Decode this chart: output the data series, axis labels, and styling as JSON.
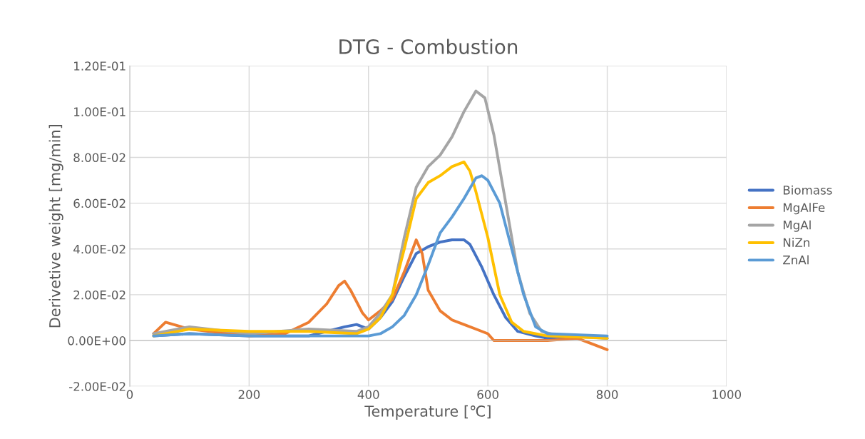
{
  "chart_data": {
    "type": "line",
    "title": "DTG - Combustion",
    "xlabel": "Temperature [℃]",
    "ylabel": "Derivetive weight [mg/min]",
    "xlim": [
      0,
      1000
    ],
    "xticks": [
      0,
      200,
      400,
      600,
      800,
      1000
    ],
    "ylim": [
      -0.02,
      0.12
    ],
    "yticks": [
      {
        "value": -0.02,
        "label": "-2.00E-02"
      },
      {
        "value": 0,
        "label": "0.00E+00"
      },
      {
        "value": 0.02,
        "label": "2.00E-02"
      },
      {
        "value": 0.04,
        "label": "4.00E-02"
      },
      {
        "value": 0.06,
        "label": "6.00E-02"
      },
      {
        "value": 0.08,
        "label": "8.00E-02"
      },
      {
        "value": 0.1,
        "label": "1.00E-01"
      },
      {
        "value": 0.12,
        "label": "1.20E-01"
      }
    ],
    "grid": true,
    "legend": "right",
    "marker": "none",
    "line_style": "solid",
    "series": [
      {
        "name": "Biomass",
        "color": "#4472c4",
        "x": [
          40,
          100,
          200,
          300,
          360,
          380,
          400,
          420,
          440,
          460,
          480,
          500,
          520,
          540,
          560,
          570,
          590,
          610,
          630,
          650,
          680,
          700,
          750,
          800
        ],
        "values": [
          0.002,
          0.003,
          0.002,
          0.002,
          0.006,
          0.007,
          0.005,
          0.01,
          0.017,
          0.028,
          0.038,
          0.041,
          0.043,
          0.044,
          0.044,
          0.042,
          0.032,
          0.02,
          0.01,
          0.004,
          0.002,
          0.001,
          0.002,
          0.001
        ]
      },
      {
        "name": "MgAlFe",
        "color": "#ed7d31",
        "x": [
          40,
          60,
          100,
          200,
          260,
          300,
          330,
          350,
          360,
          370,
          390,
          400,
          420,
          440,
          460,
          480,
          490,
          500,
          520,
          540,
          560,
          580,
          600,
          610,
          650,
          700,
          750,
          800
        ],
        "values": [
          0.003,
          0.008,
          0.005,
          0.002,
          0.003,
          0.008,
          0.016,
          0.024,
          0.026,
          0.022,
          0.012,
          0.009,
          0.013,
          0.018,
          0.03,
          0.044,
          0.038,
          0.022,
          0.013,
          0.009,
          0.007,
          0.005,
          0.003,
          0.0,
          0.0,
          0.0,
          0.001,
          -0.004
        ]
      },
      {
        "name": "MgAl",
        "color": "#a5a5a5",
        "x": [
          40,
          100,
          200,
          300,
          380,
          400,
          420,
          440,
          460,
          480,
          500,
          520,
          540,
          560,
          580,
          595,
          610,
          630,
          650,
          670,
          690,
          720,
          800
        ],
        "values": [
          0.003,
          0.006,
          0.003,
          0.005,
          0.004,
          0.006,
          0.012,
          0.02,
          0.045,
          0.067,
          0.076,
          0.081,
          0.089,
          0.1,
          0.109,
          0.106,
          0.09,
          0.06,
          0.03,
          0.012,
          0.004,
          0.002,
          0.001
        ]
      },
      {
        "name": "NiZn",
        "color": "#ffc000",
        "x": [
          40,
          100,
          200,
          300,
          380,
          400,
          420,
          440,
          460,
          480,
          500,
          520,
          540,
          560,
          570,
          580,
          600,
          620,
          640,
          660,
          700,
          800
        ],
        "values": [
          0.002,
          0.005,
          0.004,
          0.004,
          0.003,
          0.005,
          0.01,
          0.02,
          0.04,
          0.062,
          0.069,
          0.072,
          0.076,
          0.078,
          0.074,
          0.065,
          0.045,
          0.02,
          0.008,
          0.004,
          0.002,
          0.001
        ]
      },
      {
        "name": "ZnAl",
        "color": "#5b9bd5",
        "x": [
          40,
          100,
          200,
          300,
          400,
          420,
          440,
          460,
          480,
          500,
          520,
          540,
          560,
          580,
          590,
          600,
          620,
          640,
          660,
          680,
          700,
          800
        ],
        "values": [
          0.002,
          0.003,
          0.002,
          0.002,
          0.002,
          0.003,
          0.006,
          0.011,
          0.02,
          0.033,
          0.047,
          0.054,
          0.062,
          0.071,
          0.072,
          0.07,
          0.06,
          0.04,
          0.02,
          0.006,
          0.003,
          0.002
        ]
      }
    ]
  }
}
